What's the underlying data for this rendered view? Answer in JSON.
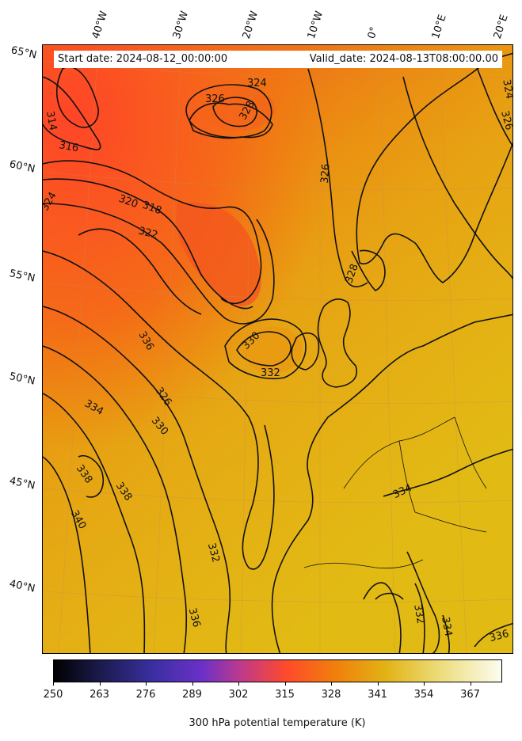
{
  "map": {
    "start_date": "Start date: 2024-08-12_00:00:00",
    "valid_date": "Valid_date: 2024-08-13T08:00:00.00",
    "lat_labels": [
      "65°N",
      "60°N",
      "55°N",
      "50°N",
      "45°N",
      "40°N"
    ],
    "lon_labels": [
      "40°W",
      "30°W",
      "20°W",
      "10°W",
      "0°",
      "10°E",
      "20°E"
    ],
    "contour_labels": [
      "324",
      "326",
      "328",
      "314",
      "316",
      "318",
      "320",
      "322",
      "324",
      "326",
      "328",
      "330",
      "332",
      "334",
      "336",
      "338",
      "338",
      "340",
      "332",
      "336",
      "326",
      "330",
      "332",
      "334",
      "334",
      "336",
      "324",
      "326"
    ],
    "colors": {
      "cold": "#ff4a2a",
      "mid": "#f07a10",
      "warm": "#e4b012",
      "contour": "#111111",
      "coast": "#111111"
    }
  },
  "colorbar": {
    "label": "300 hPa potential temperature (K)",
    "ticks": [
      "250",
      "263",
      "276",
      "289",
      "302",
      "315",
      "328",
      "341",
      "354",
      "367"
    ],
    "range": [
      250,
      376
    ]
  }
}
